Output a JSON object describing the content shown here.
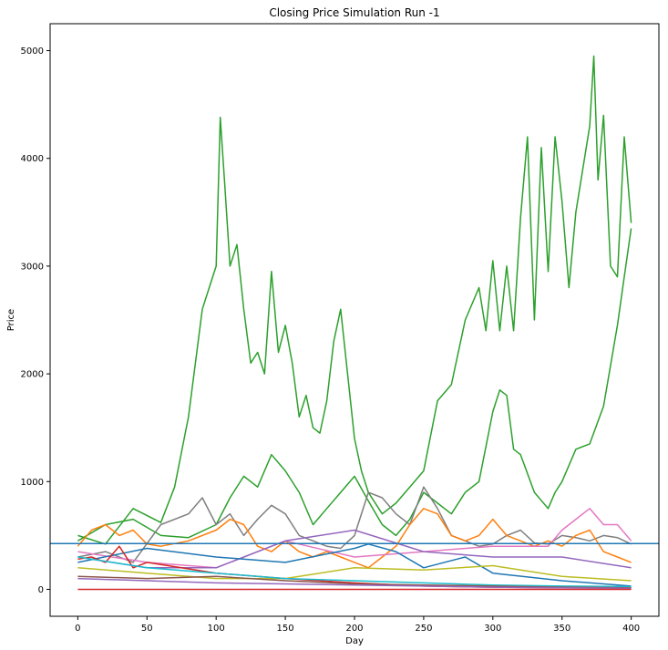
{
  "chart_data": {
    "type": "line",
    "title": "Closing Price Simulation Run -1",
    "xlabel": "Day",
    "ylabel": "Price",
    "xlim": [
      -20,
      420
    ],
    "ylim": [
      -250,
      5250
    ],
    "x_ticks": [
      0,
      50,
      100,
      150,
      200,
      250,
      300,
      350,
      400
    ],
    "y_ticks": [
      0,
      1000,
      2000,
      3000,
      4000,
      5000
    ],
    "grid": false,
    "reference_line": {
      "y": 425,
      "color": "#1f77b4"
    },
    "series": [
      {
        "color": "#2ca02c",
        "x": [
          0,
          20,
          40,
          60,
          70,
          80,
          90,
          95,
          100,
          103,
          106,
          110,
          115,
          120,
          125,
          130,
          135,
          140,
          145,
          150,
          155,
          160,
          165,
          170,
          175,
          180,
          185,
          190,
          195,
          200,
          205,
          210,
          220,
          230,
          240,
          250,
          260,
          270,
          280,
          290,
          295,
          300,
          305,
          310,
          315,
          320,
          325,
          330,
          335,
          340,
          345,
          350,
          355,
          360,
          365,
          370,
          373,
          376,
          380,
          385,
          390,
          395,
          400
        ],
        "values": [
          500,
          420,
          750,
          620,
          950,
          1600,
          2600,
          2800,
          3000,
          4380,
          3800,
          3000,
          3200,
          2600,
          2100,
          2200,
          2000,
          2950,
          2200,
          2450,
          2100,
          1600,
          1800,
          1500,
          1450,
          1750,
          2300,
          2600,
          2000,
          1400,
          1100,
          900,
          700,
          800,
          950,
          1100,
          1750,
          1900,
          2500,
          2800,
          2400,
          3050,
          2400,
          3000,
          2400,
          3450,
          4200,
          2500,
          4100,
          2950,
          4200,
          3600,
          2800,
          3500,
          3900,
          4300,
          4950,
          3800,
          4400,
          3000,
          2900,
          4200,
          3400
        ]
      },
      {
        "color": "#2ca02c",
        "x": [
          0,
          20,
          40,
          60,
          80,
          100,
          110,
          120,
          130,
          140,
          150,
          160,
          170,
          180,
          190,
          200,
          210,
          220,
          230,
          240,
          250,
          260,
          270,
          280,
          290,
          300,
          305,
          310,
          315,
          320,
          330,
          340,
          345,
          350,
          360,
          370,
          380,
          390,
          395,
          400
        ],
        "values": [
          450,
          600,
          650,
          500,
          480,
          600,
          850,
          1050,
          950,
          1250,
          1100,
          900,
          600,
          750,
          900,
          1050,
          820,
          600,
          500,
          650,
          900,
          800,
          700,
          900,
          1000,
          1650,
          1850,
          1800,
          1300,
          1250,
          900,
          750,
          900,
          1000,
          1300,
          1350,
          1700,
          2450,
          2900,
          3350
        ]
      },
      {
        "color": "#7f7f7f",
        "x": [
          0,
          20,
          40,
          60,
          80,
          90,
          100,
          110,
          120,
          130,
          140,
          150,
          160,
          170,
          180,
          190,
          200,
          210,
          220,
          230,
          240,
          250,
          260,
          270,
          280,
          290,
          300,
          310,
          320,
          330,
          340,
          350,
          360,
          370,
          380,
          390,
          400
        ],
        "values": [
          300,
          350,
          250,
          600,
          700,
          850,
          600,
          700,
          500,
          650,
          780,
          700,
          500,
          450,
          400,
          380,
          500,
          900,
          850,
          700,
          600,
          950,
          750,
          500,
          450,
          400,
          420,
          500,
          550,
          430,
          420,
          500,
          480,
          450,
          500,
          480,
          420
        ]
      },
      {
        "color": "#ff7f0e",
        "x": [
          0,
          10,
          20,
          30,
          40,
          50,
          60,
          80,
          100,
          110,
          120,
          130,
          140,
          150,
          160,
          170,
          180,
          190,
          200,
          210,
          220,
          230,
          240,
          250,
          260,
          270,
          280,
          290,
          300,
          310,
          320,
          330,
          340,
          350,
          360,
          370,
          380,
          390,
          400
        ],
        "values": [
          400,
          550,
          600,
          500,
          550,
          420,
          400,
          450,
          550,
          650,
          600,
          400,
          350,
          450,
          350,
          300,
          350,
          300,
          250,
          200,
          300,
          400,
          600,
          750,
          700,
          500,
          450,
          500,
          650,
          500,
          450,
          400,
          450,
          400,
          500,
          550,
          350,
          300,
          250
        ]
      },
      {
        "color": "#e377c2",
        "x": [
          0,
          50,
          100,
          150,
          200,
          250,
          300,
          340,
          350,
          360,
          370,
          380,
          390,
          400
        ],
        "values": [
          350,
          250,
          200,
          450,
          300,
          350,
          400,
          400,
          550,
          650,
          750,
          600,
          600,
          450
        ]
      },
      {
        "color": "#9467bd",
        "x": [
          0,
          50,
          100,
          130,
          150,
          200,
          250,
          300,
          350,
          400
        ],
        "values": [
          300,
          200,
          200,
          350,
          450,
          550,
          350,
          300,
          300,
          200
        ]
      },
      {
        "color": "#1f77b4",
        "x": [
          0,
          50,
          100,
          150,
          200,
          210,
          230,
          250,
          280,
          300,
          350,
          400
        ],
        "values": [
          250,
          380,
          300,
          250,
          380,
          420,
          350,
          200,
          300,
          150,
          80,
          30
        ]
      },
      {
        "color": "#bcbd22",
        "x": [
          0,
          50,
          100,
          150,
          200,
          250,
          300,
          350,
          400
        ],
        "values": [
          200,
          150,
          100,
          100,
          200,
          180,
          220,
          120,
          80
        ]
      },
      {
        "color": "#d62728",
        "x": [
          0,
          10,
          20,
          30,
          40,
          50,
          100,
          150,
          200,
          250,
          300,
          350,
          400
        ],
        "values": [
          280,
          300,
          250,
          400,
          200,
          250,
          150,
          100,
          60,
          30,
          20,
          15,
          10
        ]
      },
      {
        "color": "#17becf",
        "x": [
          0,
          50,
          100,
          150,
          200,
          250,
          300,
          350,
          400
        ],
        "values": [
          300,
          200,
          150,
          100,
          80,
          60,
          40,
          30,
          25
        ]
      },
      {
        "color": "#8c564b",
        "x": [
          0,
          50,
          100,
          150,
          200,
          250,
          300,
          350,
          400
        ],
        "values": [
          120,
          100,
          120,
          80,
          50,
          40,
          30,
          20,
          15
        ]
      },
      {
        "color": "#9467bd",
        "x": [
          0,
          50,
          100,
          150,
          200,
          250,
          300,
          350,
          400
        ],
        "values": [
          100,
          80,
          60,
          50,
          40,
          30,
          20,
          15,
          10
        ]
      },
      {
        "color": "#d62728",
        "x": [
          0,
          400
        ],
        "values": [
          0,
          0
        ]
      }
    ]
  }
}
